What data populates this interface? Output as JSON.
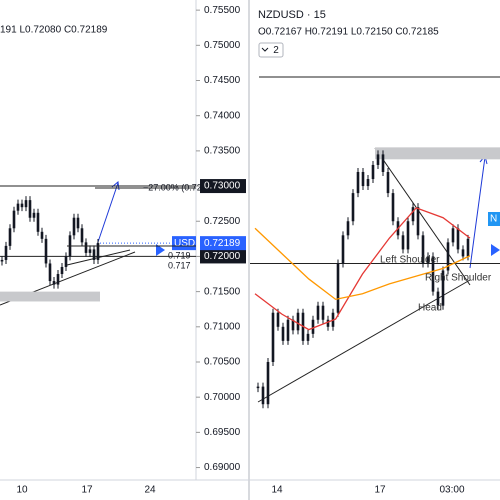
{
  "left_panel": {
    "header": "191 L0.72080 C0.72189",
    "fib_label": "−27.00% (0.72",
    "fib_fragments": [
      "0.719",
      "0.717"
    ],
    "symbol_fragment": "USD",
    "price_axis": {
      "ylim": [
        0.68823,
        0.75644
      ],
      "ticks": [
        {
          "value": 0.755,
          "label": "0.75500"
        },
        {
          "value": 0.75,
          "label": "0.75000"
        },
        {
          "value": 0.745,
          "label": "0.74500"
        },
        {
          "value": 0.74,
          "label": "0.74000"
        },
        {
          "value": 0.735,
          "label": "0.73500"
        },
        {
          "value": 0.73,
          "label": "0.73000"
        },
        {
          "value": 0.725,
          "label": "0.72500"
        },
        {
          "value": 0.72,
          "label": "0.72000"
        },
        {
          "value": 0.715,
          "label": "0.71500"
        },
        {
          "value": 0.71,
          "label": "0.71000"
        },
        {
          "value": 0.705,
          "label": "0.70500"
        },
        {
          "value": 0.7,
          "label": "0.70000"
        },
        {
          "value": 0.695,
          "label": "0.69500"
        },
        {
          "value": 0.69,
          "label": "0.69000"
        }
      ],
      "levels": [
        {
          "value": 0.73,
          "label": "0.73000"
        },
        {
          "value": 0.72,
          "label": "0.72000"
        }
      ],
      "last_price": {
        "value": 0.72189,
        "label": "0.72189"
      }
    },
    "x_labels": [
      "10",
      "17",
      "24"
    ],
    "closes": [
      0.7195,
      0.7215,
      0.724,
      0.7265,
      0.7275,
      0.727,
      0.728,
      0.7255,
      0.7262,
      0.7235,
      0.7225,
      0.719,
      0.7165,
      0.716,
      0.7175,
      0.7185,
      0.72,
      0.723,
      0.7255,
      0.724,
      0.722,
      0.7205,
      0.721,
      0.7195,
      0.7219
    ],
    "zone": [
      0.715,
      0.7136
    ]
  },
  "right_panel": {
    "symbol": "NZDUSD · 15",
    "ohlc": "O0.72167 H0.72191 L0.72150 C0.72185",
    "collapse_button": "2",
    "x_labels": [
      "14",
      "17",
      "03:00"
    ],
    "closes": [
      0.7015,
      0.699,
      0.705,
      0.712,
      0.71,
      0.708,
      0.711,
      0.7095,
      0.712,
      0.708,
      0.709,
      0.711,
      0.713,
      0.711,
      0.71,
      0.712,
      0.719,
      0.723,
      0.725,
      0.729,
      0.732,
      0.73,
      0.731,
      0.733,
      0.7345,
      0.732,
      0.729,
      0.725,
      0.723,
      0.721,
      0.725,
      0.727,
      0.723,
      0.719,
      0.72,
      0.715,
      0.713,
      0.718,
      0.722,
      0.724,
      0.721,
      0.72,
      0.7225
    ],
    "ma_red": {
      "color": "#e53935",
      "values": [
        0.7147,
        0.7118,
        0.7096,
        0.7111,
        0.7175,
        0.7226,
        0.7269,
        0.7255,
        0.7226
      ]
    },
    "ma_orange": {
      "color": "#ff9800",
      "values": [
        0.724,
        0.7204,
        0.7168,
        0.7139,
        0.7147,
        0.7161,
        0.7172,
        0.7183,
        0.7201
      ]
    },
    "level": 0.719,
    "zone": [
      0.7355,
      0.7338
    ],
    "annotations": [
      "Left Shoulder",
      "Right Shoulder",
      "Head"
    ],
    "edge_label": "N"
  }
}
